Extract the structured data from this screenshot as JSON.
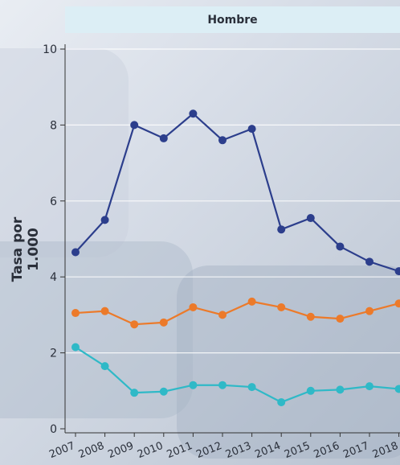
{
  "chart_data": {
    "type": "line",
    "title": "Hombre",
    "ylabel": "Tasa por 1.000",
    "xlabel": "",
    "ylim": [
      0,
      10
    ],
    "yticks": [
      0,
      2,
      4,
      6,
      8,
      10
    ],
    "x": [
      "2007",
      "2008",
      "2009",
      "2010",
      "2011",
      "2012",
      "2013",
      "2014",
      "2015",
      "2016",
      "2017",
      "2018"
    ],
    "grid": true,
    "series": [
      {
        "color": "#2c3e8c",
        "values": [
          4.65,
          5.5,
          8.0,
          7.65,
          8.3,
          7.6,
          7.9,
          5.25,
          5.55,
          4.8,
          4.4,
          4.15
        ]
      },
      {
        "color": "#ec7a2a",
        "values": [
          3.05,
          3.1,
          2.75,
          2.8,
          3.2,
          3.0,
          3.35,
          3.2,
          2.95,
          2.9,
          3.1,
          3.3
        ]
      },
      {
        "color": "#2fb9c7",
        "values": [
          2.15,
          1.65,
          0.95,
          0.98,
          1.15,
          1.15,
          1.1,
          0.7,
          1.0,
          1.03,
          1.12,
          1.05
        ]
      }
    ]
  }
}
